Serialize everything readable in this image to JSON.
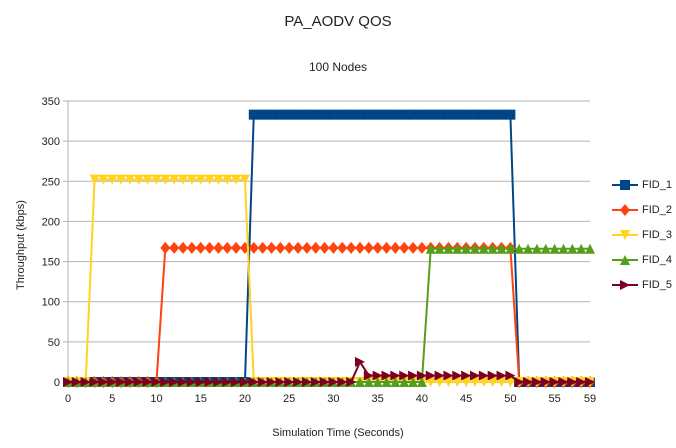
{
  "chart_data": {
    "type": "line",
    "title": "PA_AODV QOS",
    "subtitle": "100 Nodes",
    "xlabel": "Simulation Time (Seconds)",
    "ylabel": "Throughput (kbps)",
    "xlim": [
      0,
      59
    ],
    "ylim": [
      0,
      350
    ],
    "xticks": [
      "0",
      "5",
      "10",
      "15",
      "20",
      "25",
      "30",
      "35",
      "40",
      "45",
      "50",
      "55",
      "59"
    ],
    "yticks": [
      "0",
      "50",
      "100",
      "150",
      "200",
      "250",
      "300",
      "350"
    ],
    "grid": true,
    "legend_position": "right",
    "series": [
      {
        "name": "FID_1",
        "color": "#004586",
        "marker": "square",
        "x": [
          0,
          20,
          21,
          50,
          51,
          59
        ],
        "y": [
          0,
          0,
          333,
          333,
          0,
          0
        ]
      },
      {
        "name": "FID_2",
        "color": "#ff420e",
        "marker": "diamond",
        "x": [
          0,
          10,
          11,
          50,
          51,
          59
        ],
        "y": [
          0,
          0,
          167,
          167,
          0,
          0
        ]
      },
      {
        "name": "FID_3",
        "color": "#ffd320",
        "marker": "triangle-down",
        "x": [
          0,
          2,
          3,
          20,
          21,
          59
        ],
        "y": [
          0,
          0,
          252,
          252,
          0,
          0
        ]
      },
      {
        "name": "FID_4",
        "color": "#579d1c",
        "marker": "triangle-up",
        "x": [
          0,
          40,
          41,
          59
        ],
        "y": [
          0,
          0,
          166,
          166
        ]
      },
      {
        "name": "FID_5",
        "color": "#7e0021",
        "marker": "triangle-right",
        "x": [
          0,
          32,
          33,
          34,
          50,
          51,
          59
        ],
        "y": [
          0,
          0,
          25,
          8,
          8,
          0,
          0
        ]
      }
    ]
  }
}
